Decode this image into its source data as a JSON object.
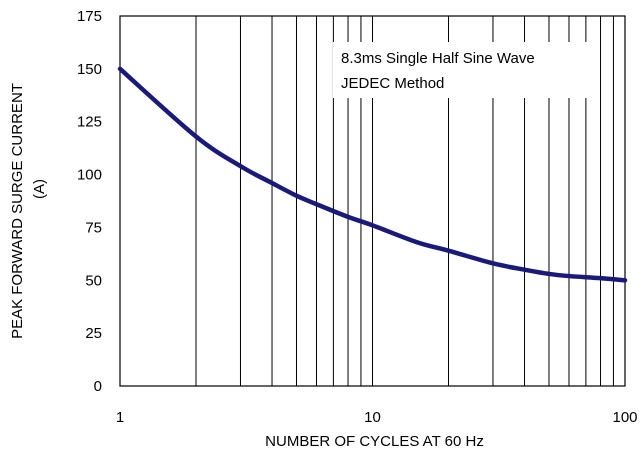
{
  "chart_data": {
    "type": "line",
    "title": "",
    "xlabel": "NUMBER OF CYCLES AT 60 Hz",
    "ylabel_line1": "PEAK FORWARD SURGE CURRENT",
    "ylabel_line2": "(A)",
    "x_scale": "log",
    "xlim": [
      1,
      100
    ],
    "ylim": [
      0,
      175
    ],
    "x_ticks": [
      1,
      10,
      100
    ],
    "x_tick_labels": [
      "1",
      "10",
      "100"
    ],
    "y_ticks": [
      0,
      25,
      50,
      75,
      100,
      125,
      150,
      175
    ],
    "y_tick_labels": [
      "0",
      "25",
      "50",
      "75",
      "100",
      "125",
      "150",
      "175"
    ],
    "grid": "vertical log minor lines",
    "annotation_lines": [
      "8.3ms Single Half Sine  Wave",
      "JEDEC Method"
    ],
    "series": [
      {
        "color": "#1a1a7a",
        "x": [
          1,
          2,
          3,
          4,
          5,
          6,
          8,
          10,
          15,
          20,
          30,
          40,
          50,
          60,
          80,
          100
        ],
        "y": [
          150,
          118,
          104,
          96,
          90,
          86,
          80,
          76,
          68,
          64,
          58,
          55,
          53,
          52,
          51,
          50
        ]
      }
    ]
  }
}
